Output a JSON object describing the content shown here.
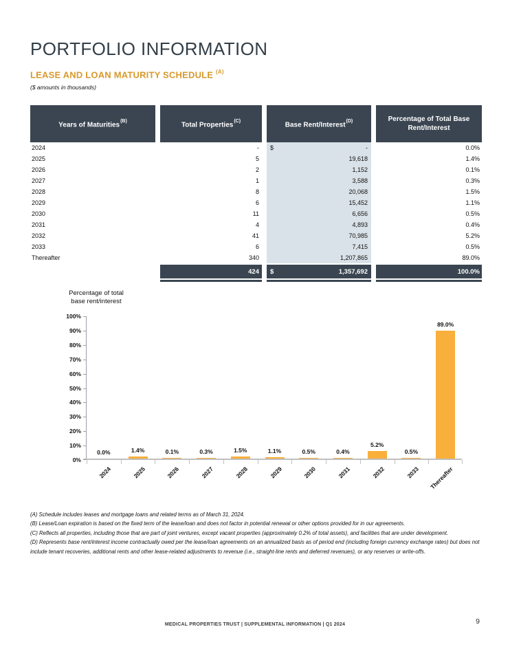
{
  "page": {
    "title": "PORTFOLIO INFORMATION",
    "section_heading": "LEASE AND LOAN MATURITY SCHEDULE",
    "section_heading_footnote_ref": "(A)",
    "units_note": "($ amounts in thousands)",
    "footer_text": "MEDICAL PROPERTIES TRUST | SUPPLEMENTAL INFORMATION | Q1 2024",
    "page_number": "9"
  },
  "table": {
    "columns": [
      {
        "label": "Years of Maturities",
        "sup": "(B)"
      },
      {
        "label": "Total Properties",
        "sup": "(C)"
      },
      {
        "label": "Base Rent/Interest",
        "sup": "(D)"
      },
      {
        "label": "Percentage of Total Base Rent/Interest",
        "sup": ""
      }
    ],
    "rows": [
      {
        "year": "2024",
        "properties": "-",
        "currency": "$",
        "rent": "-",
        "pct": "0.0%"
      },
      {
        "year": "2025",
        "properties": "5",
        "currency": "",
        "rent": "19,618",
        "pct": "1.4%"
      },
      {
        "year": "2026",
        "properties": "2",
        "currency": "",
        "rent": "1,152",
        "pct": "0.1%"
      },
      {
        "year": "2027",
        "properties": "1",
        "currency": "",
        "rent": "3,588",
        "pct": "0.3%"
      },
      {
        "year": "2028",
        "properties": "8",
        "currency": "",
        "rent": "20,068",
        "pct": "1.5%"
      },
      {
        "year": "2029",
        "properties": "6",
        "currency": "",
        "rent": "15,452",
        "pct": "1.1%"
      },
      {
        "year": "2030",
        "properties": "11",
        "currency": "",
        "rent": "6,656",
        "pct": "0.5%"
      },
      {
        "year": "2031",
        "properties": "4",
        "currency": "",
        "rent": "4,893",
        "pct": "0.4%"
      },
      {
        "year": "2032",
        "properties": "41",
        "currency": "",
        "rent": "70,985",
        "pct": "5.2%"
      },
      {
        "year": "2033",
        "properties": "6",
        "currency": "",
        "rent": "7,415",
        "pct": "0.5%"
      },
      {
        "year": "Thereafter",
        "properties": "340",
        "currency": "",
        "rent": "1,207,865",
        "pct": "89.0%"
      }
    ],
    "total": {
      "properties": "424",
      "currency": "$",
      "rent": "1,357,692",
      "pct": "100.0%"
    }
  },
  "chart_data": {
    "type": "bar",
    "title_line1": "Percentage of total",
    "title_line2": "base rent/interest",
    "categories": [
      "2024",
      "2025",
      "2026",
      "2027",
      "2028",
      "2029",
      "2030",
      "2031",
      "2032",
      "2033",
      "Thereafter"
    ],
    "values": [
      0.0,
      1.4,
      0.1,
      0.3,
      1.5,
      1.1,
      0.5,
      0.4,
      5.2,
      0.5,
      89.0
    ],
    "value_labels": [
      "0.0%",
      "1.4%",
      "0.1%",
      "0.3%",
      "1.5%",
      "1.1%",
      "0.5%",
      "0.4%",
      "5.2%",
      "0.5%",
      "89.0%"
    ],
    "ytick_labels": [
      "100%",
      "90%",
      "80%",
      "70%",
      "60%",
      "50%",
      "40%",
      "30%",
      "20%",
      "10%",
      "0%"
    ],
    "ylim": [
      0,
      100
    ],
    "xlabel": "",
    "ylabel": "Percentage of total base rent/interest",
    "grid": false,
    "legend": false,
    "bar_color": "#f9af3b"
  },
  "footnotes": [
    "(A) Schedule includes leases and mortgage loans and related terms as of March 31, 2024.",
    "(B) Lease/Loan expiration is based on the fixed term of the lease/loan and does not factor in potential renewal or other options provided for in our agreements.",
    "(C) Reflects all properties, including those that are part of joint ventures, except vacant properties (approximately 0.2% of total assets), and facilities that are under development.",
    "(D) Represents base rent/interest income contractually owed per the lease/loan agreements on an annualized basis as of period end (including foreign currency exchange rates) but does not include tenant recoveries, additional rents and other lease-related adjustments to revenue (i.e., straight-line rents and deferred revenues), or any reserves or write-offs."
  ],
  "colors": {
    "header_dark": "#3a4551",
    "rent_column_bg": "#d9e2e8",
    "bar_orange": "#f9af3b",
    "heading_orange": "#d8992b",
    "title_navy": "#323e48"
  }
}
